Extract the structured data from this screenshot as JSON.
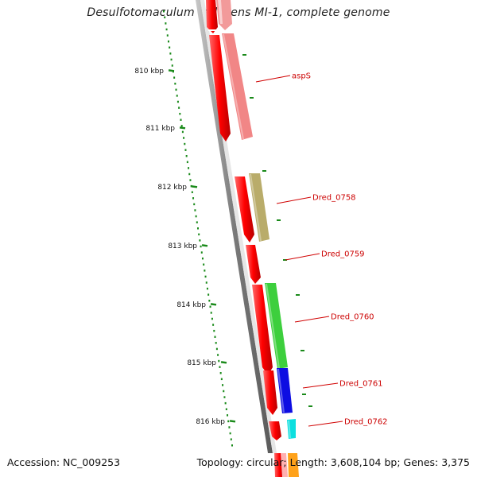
{
  "title": "Desulfotomaculum reducens MI-1, complete genome",
  "footer": {
    "accession": "Accession: NC_009253",
    "summary": "Topology: circular; Length: 3,608,104 bp; Genes: 3,375"
  },
  "colors": {
    "backbone": "#808080",
    "forward_cds": "#ff0000",
    "tick": "#1a8a1a",
    "label_line": "#d00000",
    "label_text": "#cc0000"
  },
  "ticks": [
    "810 kbp",
    "811 kbp",
    "812 kbp",
    "813 kbp",
    "814 kbp",
    "815 kbp",
    "816 kbp"
  ],
  "genes": [
    {
      "label": "aspS",
      "color": "#f08080"
    },
    {
      "label": "Dred_0758",
      "color": "#b5a862"
    },
    {
      "label": "Dred_0759",
      "color": ""
    },
    {
      "label": "Dred_0760",
      "color": "#33cc33"
    },
    {
      "label": "Dred_0761",
      "color": "#0000e0"
    },
    {
      "label": "Dred_0762",
      "color": "#00dddd"
    }
  ]
}
